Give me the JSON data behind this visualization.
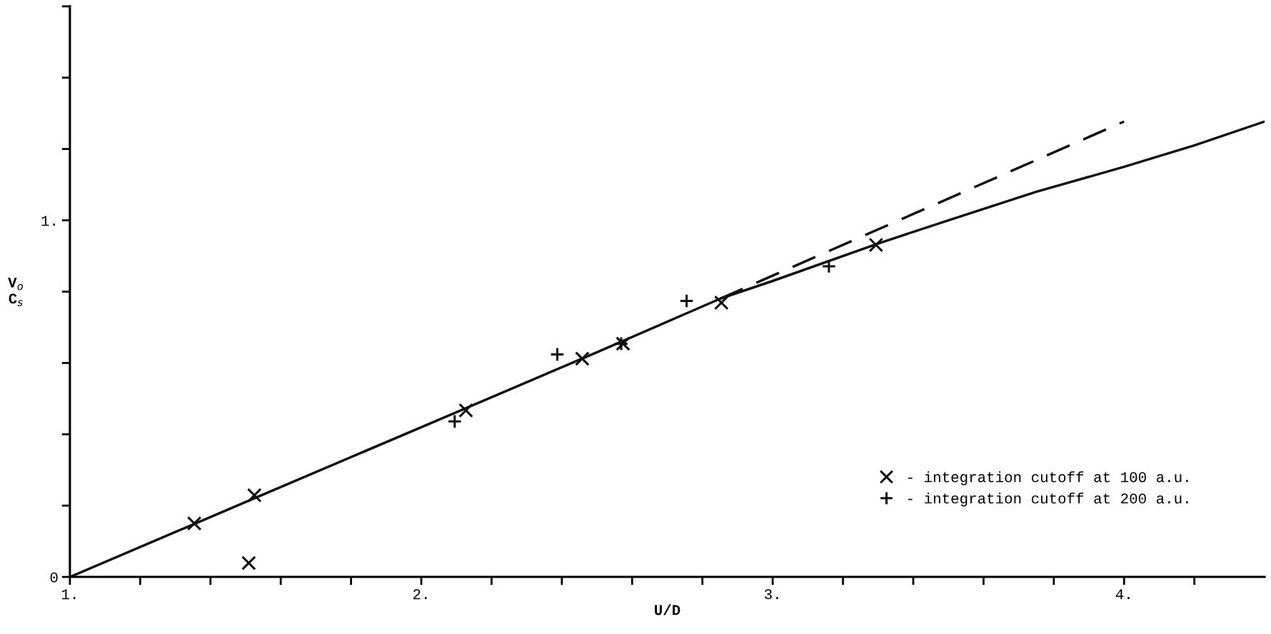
{
  "chart_data": {
    "type": "scatter",
    "xlabel": "U/D",
    "ylabel": "V$_{o}$\nC$_{s}$",
    "xlim": [
      1.0,
      4.4
    ],
    "ylim": [
      0,
      1.6
    ],
    "xticks": [
      {
        "value": 1.0,
        "label": "1."
      },
      {
        "value": 1.2,
        "label": null
      },
      {
        "value": 1.4,
        "label": null
      },
      {
        "value": 1.6,
        "label": null
      },
      {
        "value": 1.8,
        "label": null
      },
      {
        "value": 2.0,
        "label": "2."
      },
      {
        "value": 2.2,
        "label": null
      },
      {
        "value": 2.4,
        "label": null
      },
      {
        "value": 2.6,
        "label": null
      },
      {
        "value": 2.8,
        "label": null
      },
      {
        "value": 3.0,
        "label": "3."
      },
      {
        "value": 3.2,
        "label": null
      },
      {
        "value": 3.4,
        "label": null
      },
      {
        "value": 3.6,
        "label": null
      },
      {
        "value": 3.8,
        "label": null
      },
      {
        "value": 4.0,
        "label": "4."
      },
      {
        "value": 4.2,
        "label": null
      }
    ],
    "yticks": [
      0,
      {
        "value": 0.2,
        "label": null
      },
      {
        "value": 0.4,
        "label": null
      },
      {
        "value": 0.6,
        "label": null
      },
      {
        "value": 0.8,
        "label": null
      },
      {
        "value": 1.0,
        "label": "1."
      },
      {
        "value": 1.2,
        "label": null
      },
      {
        "value": 1.4,
        "label": null
      },
      {
        "value": 1.6,
        "label": null
      }
    ],
    "grid": false,
    "legend": "bottom right",
    "series": [
      {
        "name": "- integration cutoff at 100 a.u.",
        "marker": "x",
        "color": "#111111",
        "x": [
          1.354,
          1.509,
          1.525,
          2.127,
          2.458,
          2.574,
          2.854,
          3.294
        ],
        "values": [
          0.15,
          0.039,
          0.229,
          0.467,
          0.612,
          0.654,
          0.769,
          0.931
        ]
      },
      {
        "name": "- integration cutoff at 200 a.u.",
        "marker": "cross",
        "color": "#111111",
        "x": [
          2.095,
          2.387,
          2.569,
          2.755,
          3.16
        ],
        "values": [
          0.436,
          0.624,
          0.654,
          0.774,
          0.871
        ]
      },
      {
        "type": "line",
        "marker": "none",
        "line_style": "solid",
        "color": "#111111",
        "x": [
          1.0,
          1.5,
          2.0,
          2.5,
          2.85,
          3.0,
          3.3,
          3.5,
          3.75,
          4.0,
          4.2,
          4.4
        ],
        "values": [
          0.0,
          0.21,
          0.42,
          0.63,
          0.78,
          0.83,
          0.935,
          1.0,
          1.08,
          1.15,
          1.21,
          1.277
        ]
      },
      {
        "type": "line",
        "marker": "none",
        "line_style": "dashed",
        "color": "#111111",
        "x": [
          2.85,
          4.0
        ],
        "values": [
          0.78,
          1.277
        ]
      }
    ]
  }
}
